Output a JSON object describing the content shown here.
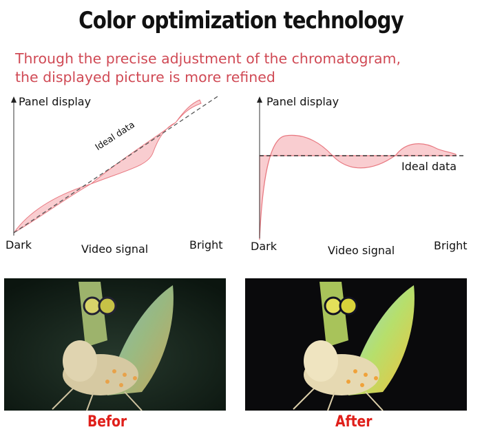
{
  "header": {
    "title": "Color optimization technology",
    "subtitle_line1": "Through the precise adjustment of the chromatogram,",
    "subtitle_line2": "the displayed picture is more refined"
  },
  "left_chart": {
    "y_label": "Panel display",
    "ideal_label": "Ideal data",
    "x_left": "Dark",
    "x_center": "Video signal",
    "x_right": "Bright"
  },
  "right_chart": {
    "y_label": "Panel display",
    "ideal_label": "Ideal data",
    "x_left": "Dark",
    "x_center": "Video signal",
    "x_right": "Bright"
  },
  "photos": {
    "before_caption": "Befor",
    "after_caption": "After"
  },
  "colors": {
    "curve_fill": "#f9cdd0",
    "curve_stroke": "#e87880",
    "caption_red": "#e0201b",
    "subtitle_red": "#d04a55"
  }
}
